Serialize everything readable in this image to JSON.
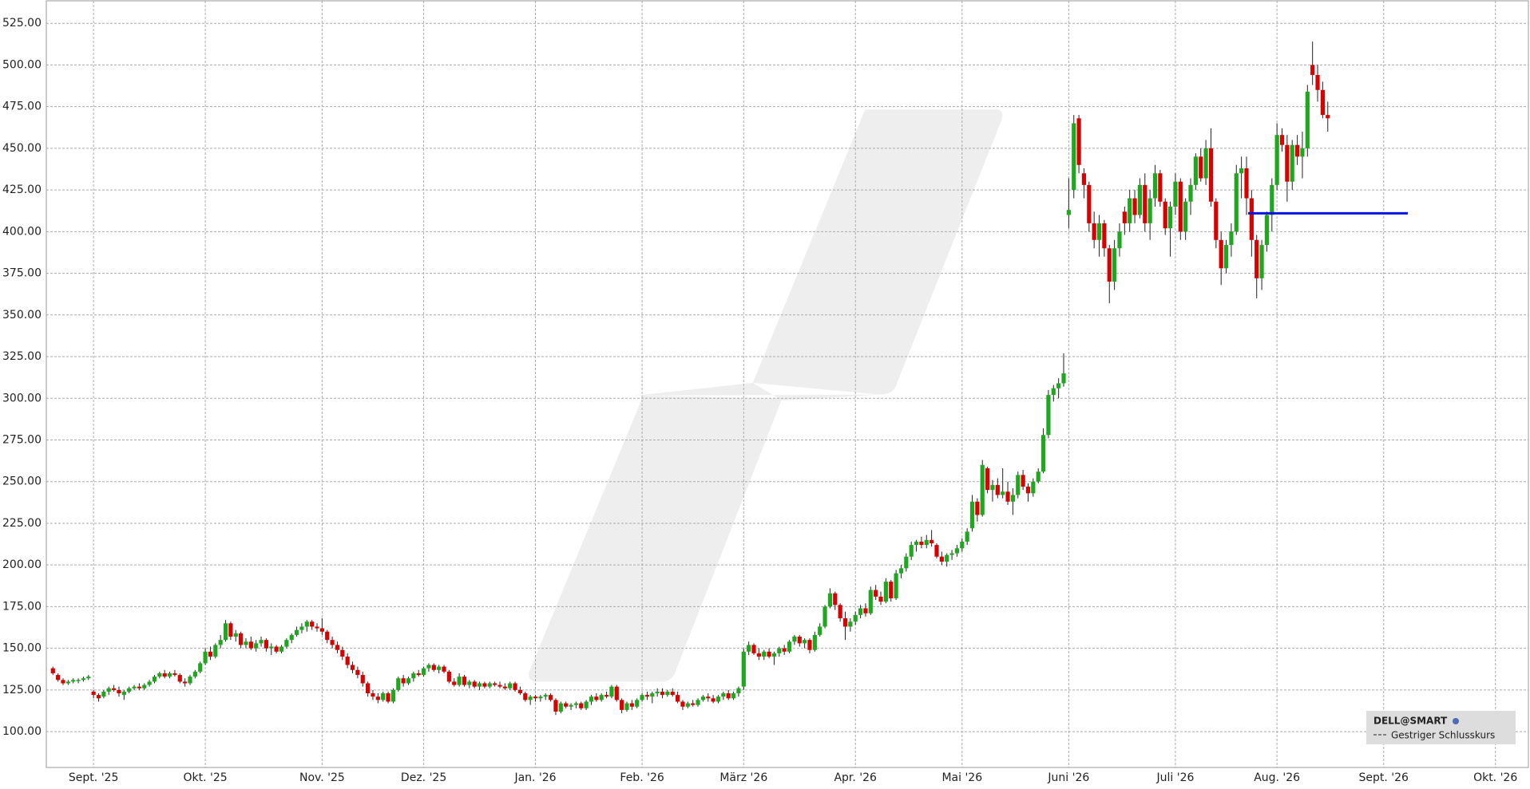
{
  "chart_data": {
    "type": "candlestick",
    "series": [
      {
        "name": "DELL@SMART",
        "up_color": "#1fa81f",
        "down_color": "#d90000",
        "open": [
          138,
          134,
          131,
          129,
          130,
          131,
          131,
          132,
          124,
          122,
          121,
          124,
          126,
          125,
          122,
          124,
          126,
          127,
          126,
          128,
          130,
          133,
          135,
          133,
          135,
          134,
          130,
          129,
          133,
          136,
          141,
          148,
          145,
          152,
          155,
          165,
          157,
          159,
          152,
          154,
          150,
          153,
          155,
          150,
          151,
          148,
          151,
          155,
          158,
          161,
          163,
          166,
          163,
          162,
          160,
          155,
          152,
          149,
          145,
          140,
          137,
          134,
          129,
          123,
          121,
          119,
          123,
          118,
          125,
          132,
          129,
          132,
          135,
          134,
          138,
          140,
          137,
          139,
          136,
          130,
          128,
          133,
          128,
          130,
          127,
          129,
          127,
          129,
          128,
          127,
          126,
          129,
          125,
          123,
          119,
          121,
          120,
          121,
          122,
          119,
          112,
          117,
          115,
          116,
          117,
          114,
          118,
          121,
          119,
          122,
          121,
          127,
          119,
          113,
          117,
          115,
          119,
          122,
          121,
          123,
          124,
          122,
          124,
          122,
          118,
          115,
          117,
          116,
          119,
          121,
          120,
          118,
          121,
          123,
          120,
          123,
          127,
          148,
          152,
          147,
          145,
          148,
          145,
          147,
          150,
          148,
          154,
          157,
          153,
          155,
          149,
          158,
          163,
          175,
          183,
          176,
          168,
          163,
          166,
          170,
          174,
          171,
          185,
          181,
          178,
          190,
          180,
          195,
          198,
          205,
          212,
          214,
          212,
          215,
          212,
          205,
          202,
          206,
          207,
          210,
          214,
          222,
          238,
          230,
          258,
          245,
          248,
          242,
          244,
          238,
          242,
          254,
          247,
          243,
          250,
          256,
          278,
          302,
          306,
          309,
          410,
          425,
          468,
          435,
          428,
          405,
          395,
          405,
          390,
          370,
          390,
          412,
          405,
          420,
          410,
          428,
          405,
          420,
          435,
          418,
          402,
          415,
          430,
          400,
          418,
          428,
          445,
          432,
          450,
          418,
          395,
          378,
          392,
          400,
          435,
          438,
          420,
          395,
          372,
          392,
          410,
          428,
          458,
          452,
          430,
          452,
          445,
          450,
          500,
          494,
          485,
          470
        ],
        "high": [
          139,
          135,
          132,
          131,
          132,
          132,
          133,
          134,
          125,
          123,
          125,
          127,
          128,
          127,
          125,
          127,
          128,
          129,
          129,
          131,
          134,
          136,
          137,
          136,
          137,
          135,
          132,
          134,
          137,
          142,
          150,
          151,
          153,
          158,
          167,
          166,
          161,
          160,
          156,
          157,
          155,
          157,
          156,
          153,
          152,
          152,
          156,
          159,
          163,
          165,
          167,
          167,
          165,
          168,
          161,
          157,
          154,
          151,
          147,
          142,
          139,
          136,
          130,
          125,
          123,
          124,
          124,
          126,
          133,
          134,
          133,
          136,
          137,
          139,
          141,
          141,
          140,
          140,
          137,
          132,
          135,
          134,
          131,
          131,
          130,
          130,
          130,
          130,
          130,
          129,
          130,
          130,
          127,
          124,
          122,
          122,
          122,
          123,
          123,
          120,
          118,
          118,
          117,
          118,
          118,
          119,
          122,
          123,
          123,
          124,
          128,
          128,
          120,
          118,
          119,
          120,
          123,
          124,
          124,
          126,
          126,
          125,
          126,
          124,
          119,
          118,
          119,
          120,
          122,
          123,
          122,
          122,
          124,
          125,
          124,
          127,
          150,
          154,
          153,
          150,
          149,
          150,
          148,
          151,
          152,
          155,
          158,
          158,
          156,
          156,
          160,
          165,
          176,
          186,
          184,
          177,
          172,
          168,
          172,
          176,
          177,
          187,
          188,
          184,
          192,
          191,
          197,
          200,
          207,
          214,
          215,
          217,
          218,
          221,
          213,
          208,
          207,
          209,
          212,
          216,
          222,
          242,
          240,
          263,
          259,
          251,
          252,
          258,
          250,
          246,
          256,
          257,
          249,
          252,
          258,
          282,
          305,
          308,
          312,
          327,
          432,
          470,
          470,
          438,
          430,
          412,
          410,
          407,
          392,
          395,
          405,
          415,
          425,
          425,
          432,
          435,
          425,
          440,
          437,
          420,
          418,
          435,
          432,
          420,
          432,
          447,
          450,
          455,
          462,
          420,
          400,
          395,
          405,
          440,
          445,
          445,
          425,
          398,
          395,
          412,
          432,
          465,
          462,
          458,
          455,
          458,
          460,
          488,
          514,
          500,
          490,
          478
        ],
        "low": [
          134,
          130,
          128,
          128,
          129,
          129,
          130,
          131,
          120,
          118,
          120,
          122,
          124,
          121,
          119,
          123,
          125,
          125,
          125,
          127,
          129,
          132,
          132,
          132,
          133,
          129,
          127,
          128,
          132,
          135,
          140,
          143,
          144,
          150,
          154,
          155,
          154,
          150,
          150,
          149,
          148,
          151,
          148,
          146,
          147,
          147,
          150,
          153,
          157,
          159,
          160,
          161,
          160,
          158,
          153,
          150,
          147,
          143,
          138,
          135,
          132,
          127,
          121,
          119,
          117,
          118,
          117,
          117,
          124,
          127,
          128,
          130,
          133,
          133,
          136,
          136,
          135,
          135,
          129,
          127,
          127,
          127,
          126,
          126,
          125,
          126,
          126,
          127,
          126,
          125,
          125,
          124,
          122,
          118,
          116,
          118,
          118,
          119,
          118,
          110,
          111,
          114,
          113,
          114,
          113,
          113,
          116,
          118,
          118,
          120,
          120,
          118,
          111,
          112,
          113,
          114,
          118,
          119,
          117,
          121,
          120,
          121,
          121,
          117,
          113,
          114,
          115,
          115,
          118,
          118,
          117,
          117,
          119,
          119,
          119,
          121,
          125,
          146,
          146,
          143,
          143,
          144,
          140,
          145,
          146,
          147,
          152,
          151,
          150,
          147,
          148,
          157,
          162,
          174,
          173,
          166,
          155,
          160,
          164,
          168,
          169,
          170,
          179,
          176,
          177,
          178,
          179,
          192,
          196,
          203,
          208,
          210,
          210,
          211,
          204,
          200,
          199,
          203,
          205,
          208,
          212,
          220,
          226,
          229,
          243,
          238,
          240,
          240,
          236,
          230,
          240,
          245,
          238,
          241,
          249,
          255,
          276,
          298,
          300,
          307,
          402,
          420,
          435,
          420,
          400,
          390,
          385,
          385,
          357,
          365,
          385,
          398,
          400,
          405,
          408,
          400,
          395,
          415,
          415,
          398,
          385,
          410,
          395,
          395,
          410,
          425,
          430,
          428,
          415,
          390,
          368,
          375,
          385,
          398,
          420,
          410,
          385,
          360,
          365,
          388,
          400,
          425,
          448,
          418,
          425,
          440,
          432,
          445,
          488,
          478,
          468,
          460
        ],
        "close": [
          135,
          131,
          129,
          130,
          131,
          131,
          132,
          133,
          122,
          120,
          124,
          126,
          125,
          123,
          124,
          126,
          127,
          126,
          128,
          130,
          133,
          135,
          133,
          135,
          134,
          130,
          129,
          133,
          136,
          141,
          148,
          145,
          152,
          155,
          165,
          157,
          159,
          152,
          154,
          150,
          153,
          155,
          150,
          151,
          148,
          151,
          155,
          158,
          161,
          163,
          166,
          163,
          162,
          160,
          155,
          152,
          149,
          145,
          140,
          137,
          134,
          129,
          123,
          121,
          119,
          123,
          118,
          125,
          132,
          129,
          132,
          135,
          134,
          138,
          140,
          137,
          139,
          136,
          130,
          128,
          133,
          128,
          130,
          127,
          129,
          127,
          129,
          128,
          127,
          126,
          129,
          125,
          123,
          119,
          121,
          120,
          121,
          122,
          119,
          112,
          117,
          115,
          116,
          117,
          114,
          118,
          121,
          119,
          122,
          121,
          127,
          119,
          113,
          117,
          115,
          119,
          122,
          121,
          123,
          124,
          122,
          124,
          122,
          118,
          115,
          117,
          116,
          119,
          121,
          120,
          118,
          121,
          123,
          120,
          123,
          126,
          148,
          152,
          147,
          145,
          148,
          145,
          147,
          150,
          148,
          154,
          157,
          153,
          155,
          149,
          158,
          163,
          175,
          183,
          176,
          168,
          163,
          166,
          170,
          174,
          171,
          185,
          181,
          178,
          190,
          180,
          195,
          198,
          205,
          212,
          214,
          212,
          215,
          213,
          205,
          202,
          206,
          207,
          210,
          214,
          220,
          238,
          230,
          260,
          245,
          248,
          242,
          244,
          238,
          242,
          254,
          247,
          243,
          250,
          256,
          278,
          302,
          306,
          309,
          315,
          413,
          465,
          440,
          428,
          405,
          395,
          405,
          390,
          370,
          390,
          400,
          405,
          420,
          410,
          428,
          405,
          420,
          435,
          418,
          402,
          415,
          430,
          400,
          418,
          428,
          445,
          432,
          450,
          418,
          395,
          378,
          392,
          400,
          435,
          438,
          420,
          395,
          372,
          392,
          410,
          428,
          458,
          452,
          430,
          452,
          445,
          450,
          484,
          494,
          485,
          470,
          468
        ]
      }
    ],
    "hline": {
      "name": "Gestriger Schlusskurs",
      "value": 411,
      "color": "#0a14e0"
    },
    "xlim": [
      -1.3,
      290.5
    ],
    "xticks": [
      {
        "value": 8,
        "label": "Sept. '25"
      },
      {
        "value": 30,
        "label": "Okt. '25"
      },
      {
        "value": 53,
        "label": "Nov. '25"
      },
      {
        "value": 73,
        "label": "Dez. '25"
      },
      {
        "value": 95,
        "label": "Jan. '26"
      },
      {
        "value": 116,
        "label": "Feb. '26"
      },
      {
        "value": 136,
        "label": "März '26"
      },
      {
        "value": 158,
        "label": "Apr. '26"
      },
      {
        "value": 179,
        "label": "Mai '26"
      },
      {
        "value": 200,
        "label": "Juni '26"
      },
      {
        "value": 221,
        "label": "Juli '26"
      },
      {
        "value": 241,
        "label": "Aug. '26"
      },
      {
        "value": 262,
        "label": "Sept. '26"
      },
      {
        "value": 284,
        "label": "Okt. '26"
      }
    ],
    "ylim": [
      78.5,
      538.5
    ],
    "yticks": [
      {
        "value": 100,
        "label": "100.00"
      },
      {
        "value": 125,
        "label": "125.00"
      },
      {
        "value": 150,
        "label": "150.00"
      },
      {
        "value": 175,
        "label": "175.00"
      },
      {
        "value": 200,
        "label": "200.00"
      },
      {
        "value": 225,
        "label": "225.00"
      },
      {
        "value": 250,
        "label": "250.00"
      },
      {
        "value": 275,
        "label": "275.00"
      },
      {
        "value": 300,
        "label": "300.00"
      },
      {
        "value": 325,
        "label": "325.00"
      },
      {
        "value": 350,
        "label": "350.00"
      },
      {
        "value": 375,
        "label": "375.00"
      },
      {
        "value": 400,
        "label": "400.00"
      },
      {
        "value": 425,
        "label": "425.00"
      },
      {
        "value": 450,
        "label": "450.00"
      },
      {
        "value": 475,
        "label": "475.00"
      },
      {
        "value": 500,
        "label": "500.00"
      },
      {
        "value": 525,
        "label": "525.00"
      }
    ],
    "grid": true
  }
}
